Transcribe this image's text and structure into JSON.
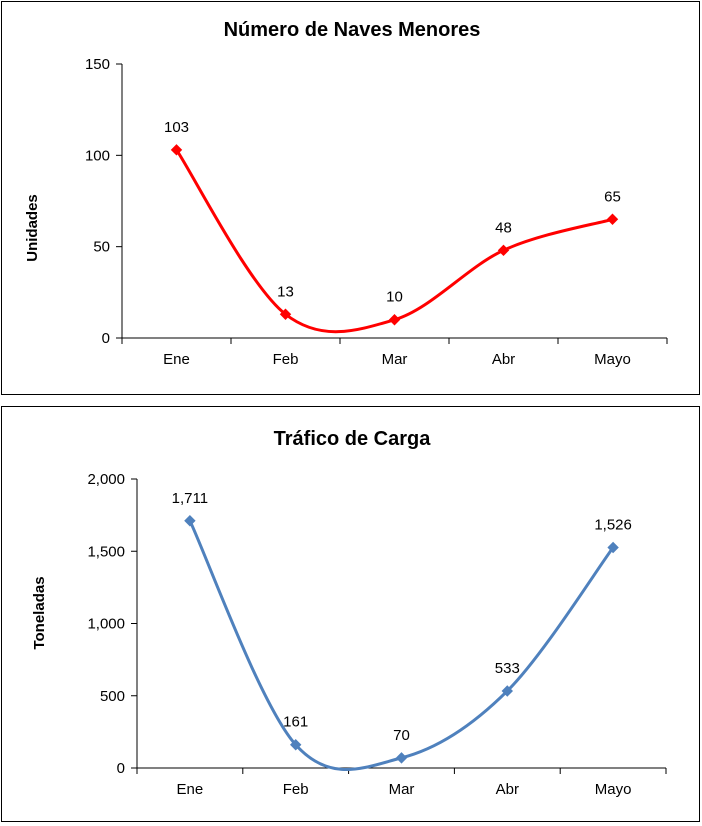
{
  "chart_data": [
    {
      "type": "line",
      "title": "Número de Naves Menores",
      "xlabel": "",
      "ylabel": "Unidades",
      "categories": [
        "Ene",
        "Feb",
        "Mar",
        "Abr",
        "Mayo"
      ],
      "series": [
        {
          "values": [
            103,
            13,
            10,
            48,
            65
          ]
        }
      ],
      "data_labels": [
        "103",
        "13",
        "10",
        "48",
        "65"
      ],
      "ylim": [
        0,
        150
      ],
      "yticks": [
        0,
        50,
        100,
        150
      ],
      "ytick_labels": [
        "0",
        "50",
        "100",
        "150"
      ],
      "color": "#ff0000",
      "smooth": true,
      "grid": false,
      "legend": "none"
    },
    {
      "type": "line",
      "title": "Tráfico de Carga",
      "xlabel": "",
      "ylabel": "Toneladas",
      "categories": [
        "Ene",
        "Feb",
        "Mar",
        "Abr",
        "Mayo"
      ],
      "series": [
        {
          "values": [
            1711,
            161,
            70,
            533,
            1526
          ]
        }
      ],
      "data_labels": [
        "1,711",
        "161",
        "70",
        "533",
        "1,526"
      ],
      "ylim": [
        0,
        2000
      ],
      "yticks": [
        0,
        500,
        1000,
        1500,
        2000
      ],
      "ytick_labels": [
        "0",
        "500",
        "1,000",
        "1,500",
        "2,000"
      ],
      "color": "#4f81bd",
      "smooth": true,
      "grid": false,
      "legend": "none"
    }
  ]
}
